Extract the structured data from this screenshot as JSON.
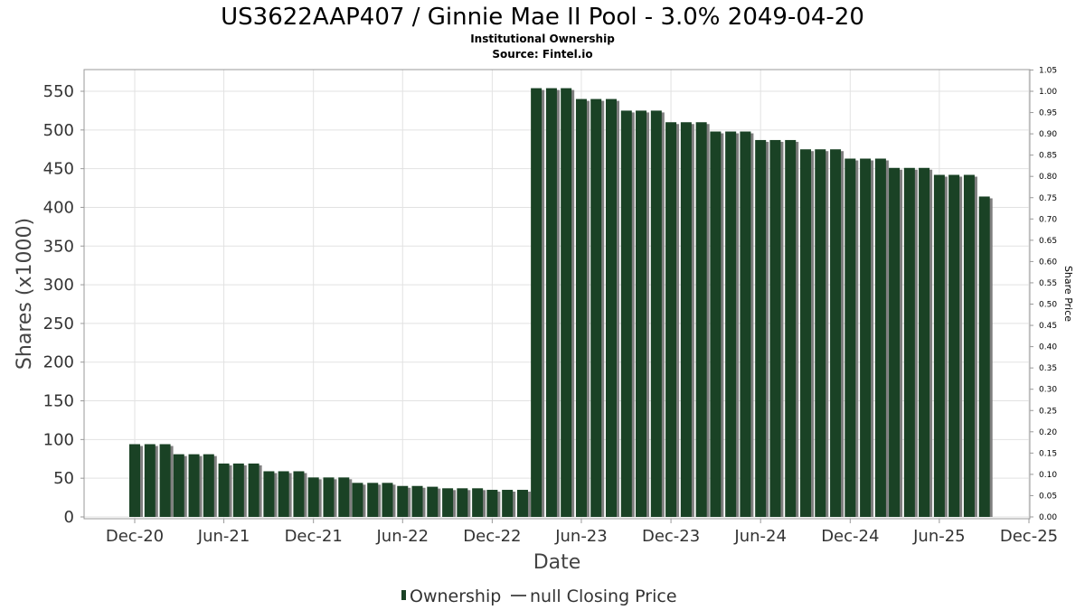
{
  "chart_data": {
    "type": "bar",
    "title": "US3622AAP407 / Ginnie Mae II Pool - 3.0% 2049-04-20",
    "subtitle": "Institutional Ownership",
    "source": "Source: Fintel.io",
    "xlabel": "Date",
    "ylabel": "Shares (x1000)",
    "y2label": "Share Price",
    "ylim": [
      0,
      580
    ],
    "y2lim": [
      0,
      1.05
    ],
    "yticks": [
      0,
      50,
      100,
      150,
      200,
      250,
      300,
      350,
      400,
      450,
      500,
      550
    ],
    "y2ticks": [
      "0.00",
      "0.05",
      "0.10",
      "0.15",
      "0.20",
      "0.25",
      "0.30",
      "0.35",
      "0.40",
      "0.45",
      "0.50",
      "0.55",
      "0.60",
      "0.65",
      "0.70",
      "0.75",
      "0.80",
      "0.85",
      "0.90",
      "0.95",
      "1.00",
      "1.05"
    ],
    "x_tick_labels": [
      "Dec-20",
      "Jun-21",
      "Dec-21",
      "Jun-22",
      "Dec-22",
      "Jun-23",
      "Dec-23",
      "Jun-24",
      "Dec-24",
      "Jun-25",
      "Dec-25"
    ],
    "x_range": [
      "2020-09-15",
      "2025-12-01"
    ],
    "grid": true,
    "bar_color": "#1a4225",
    "bars": [
      {
        "date": "2020-12-01",
        "value": 94
      },
      {
        "date": "2021-01-01",
        "value": 94
      },
      {
        "date": "2021-02-01",
        "value": 94
      },
      {
        "date": "2021-03-01",
        "value": 81
      },
      {
        "date": "2021-04-01",
        "value": 81
      },
      {
        "date": "2021-05-01",
        "value": 81
      },
      {
        "date": "2021-06-01",
        "value": 69
      },
      {
        "date": "2021-07-01",
        "value": 69
      },
      {
        "date": "2021-08-01",
        "value": 69
      },
      {
        "date": "2021-09-01",
        "value": 59
      },
      {
        "date": "2021-10-01",
        "value": 59
      },
      {
        "date": "2021-11-01",
        "value": 59
      },
      {
        "date": "2021-12-01",
        "value": 51
      },
      {
        "date": "2022-01-01",
        "value": 51
      },
      {
        "date": "2022-02-01",
        "value": 51
      },
      {
        "date": "2022-03-01",
        "value": 44
      },
      {
        "date": "2022-04-01",
        "value": 44
      },
      {
        "date": "2022-05-01",
        "value": 44
      },
      {
        "date": "2022-06-01",
        "value": 40
      },
      {
        "date": "2022-07-01",
        "value": 40
      },
      {
        "date": "2022-08-01",
        "value": 39
      },
      {
        "date": "2022-09-01",
        "value": 37
      },
      {
        "date": "2022-10-01",
        "value": 37
      },
      {
        "date": "2022-11-01",
        "value": 37
      },
      {
        "date": "2022-12-01",
        "value": 35
      },
      {
        "date": "2023-01-01",
        "value": 35
      },
      {
        "date": "2023-02-01",
        "value": 35
      },
      {
        "date": "2023-03-01",
        "value": 554
      },
      {
        "date": "2023-04-01",
        "value": 554
      },
      {
        "date": "2023-05-01",
        "value": 554
      },
      {
        "date": "2023-06-01",
        "value": 540
      },
      {
        "date": "2023-07-01",
        "value": 540
      },
      {
        "date": "2023-08-01",
        "value": 540
      },
      {
        "date": "2023-09-01",
        "value": 525
      },
      {
        "date": "2023-10-01",
        "value": 525
      },
      {
        "date": "2023-11-01",
        "value": 525
      },
      {
        "date": "2023-12-01",
        "value": 510
      },
      {
        "date": "2024-01-01",
        "value": 510
      },
      {
        "date": "2024-02-01",
        "value": 510
      },
      {
        "date": "2024-03-01",
        "value": 498
      },
      {
        "date": "2024-04-01",
        "value": 498
      },
      {
        "date": "2024-05-01",
        "value": 498
      },
      {
        "date": "2024-06-01",
        "value": 487
      },
      {
        "date": "2024-07-01",
        "value": 487
      },
      {
        "date": "2024-08-01",
        "value": 487
      },
      {
        "date": "2024-09-01",
        "value": 475
      },
      {
        "date": "2024-10-01",
        "value": 475
      },
      {
        "date": "2024-11-01",
        "value": 475
      },
      {
        "date": "2024-12-01",
        "value": 463
      },
      {
        "date": "2025-01-01",
        "value": 463
      },
      {
        "date": "2025-02-01",
        "value": 463
      },
      {
        "date": "2025-03-01",
        "value": 451
      },
      {
        "date": "2025-04-01",
        "value": 451
      },
      {
        "date": "2025-05-01",
        "value": 451
      },
      {
        "date": "2025-06-01",
        "value": 442
      },
      {
        "date": "2025-07-01",
        "value": 442
      },
      {
        "date": "2025-08-01",
        "value": 442
      },
      {
        "date": "2025-09-01",
        "value": 414
      }
    ],
    "legend": {
      "position": "bottom-center",
      "items": [
        {
          "name": "Ownership",
          "symbol": "bar",
          "color": "#1a4225"
        },
        {
          "name": "null Closing Price",
          "symbol": "line",
          "color": "#555555"
        }
      ]
    }
  }
}
